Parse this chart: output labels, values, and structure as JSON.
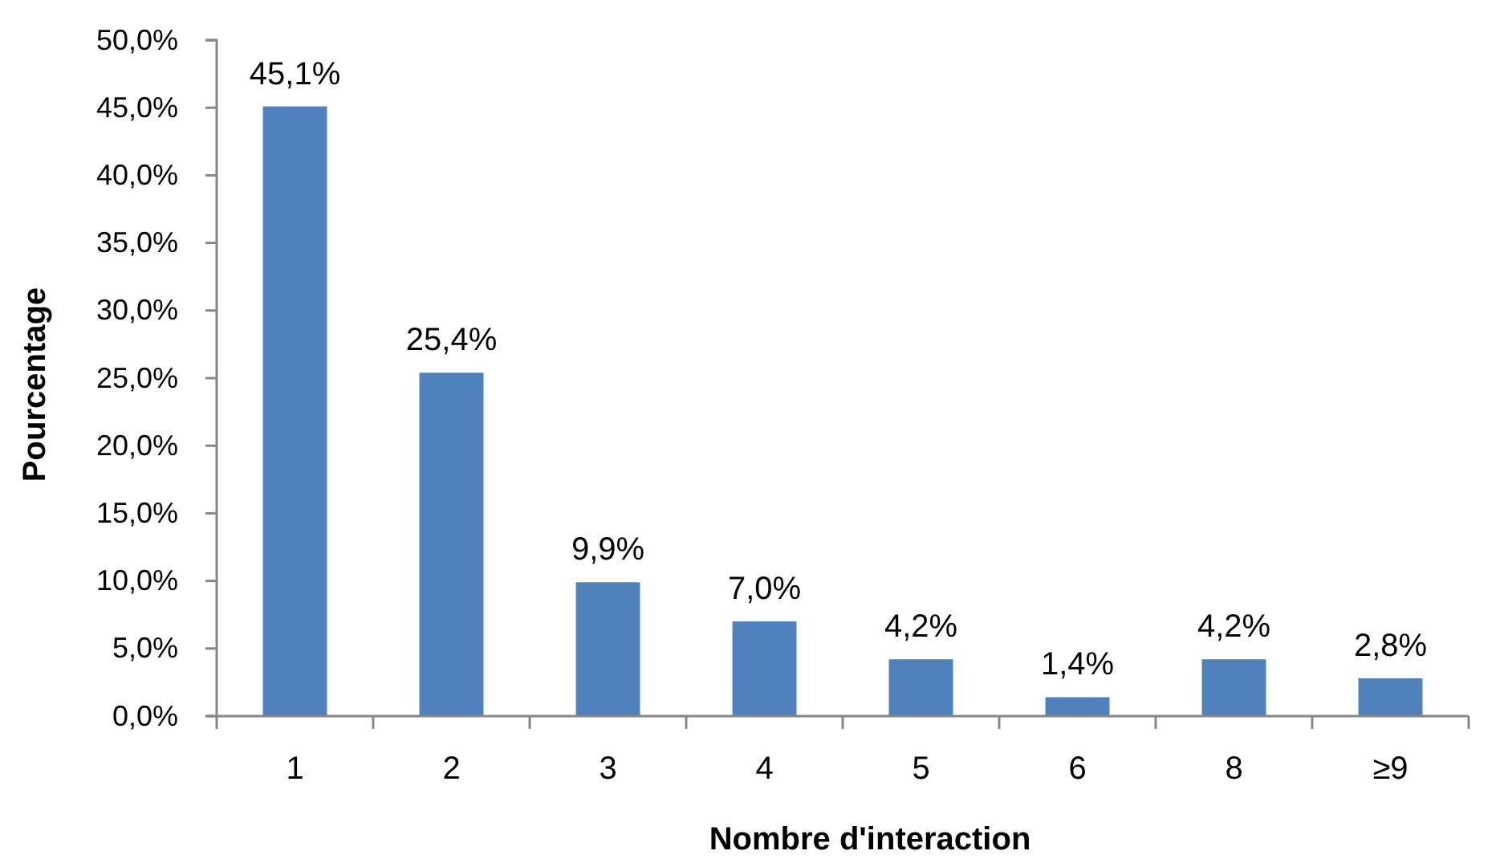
{
  "chart_data": {
    "type": "bar",
    "xlabel": "Nombre d'interaction",
    "ylabel": "Pourcentage",
    "categories": [
      "1",
      "2",
      "3",
      "4",
      "5",
      "6",
      "8",
      "≥9"
    ],
    "values": [
      45.1,
      25.4,
      9.9,
      7.0,
      4.2,
      1.4,
      4.2,
      2.8
    ],
    "value_labels": [
      "45,1%",
      "25,4%",
      "9,9%",
      "7,0%",
      "4,2%",
      "1,4%",
      "4,2%",
      "2,8%"
    ],
    "color": "#4f81bd",
    "ylim": [
      0,
      50
    ],
    "yticks": [
      {
        "value": 0,
        "label": "0,0%"
      },
      {
        "value": 5,
        "label": "5,0%"
      },
      {
        "value": 10,
        "label": "10,0%"
      },
      {
        "value": 15,
        "label": "15,0%"
      },
      {
        "value": 20,
        "label": "20,0%"
      },
      {
        "value": 25,
        "label": "25,0%"
      },
      {
        "value": 30,
        "label": "30,0%"
      },
      {
        "value": 35,
        "label": "35,0%"
      },
      {
        "value": 40,
        "label": "40,0%"
      },
      {
        "value": 45,
        "label": "45,0%"
      },
      {
        "value": 50,
        "label": "50,0%"
      }
    ],
    "grid": false
  }
}
